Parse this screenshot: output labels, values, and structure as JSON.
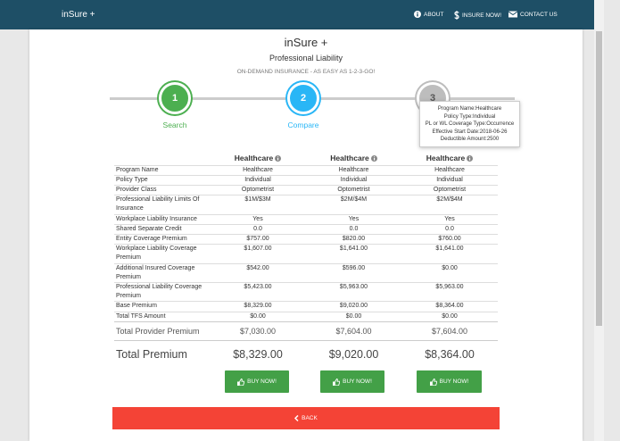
{
  "navbar": {
    "brand": "inSure +",
    "links": [
      "ABOUT",
      "INSURE NOW!",
      "CONTACT US"
    ]
  },
  "header": {
    "title": "inSure +",
    "subtitle": "Professional Liability",
    "tagline": "ON-DEMAND INSURANCE - AS EASY AS 1-2-3-GO!"
  },
  "steps": [
    {
      "number": "1",
      "label": "Search"
    },
    {
      "number": "2",
      "label": "Compare"
    },
    {
      "number": "3"
    }
  ],
  "tooltip": [
    "Program Name:Healthcare",
    "Policy Type:Individual",
    "PL or WL Coverage Type:Occurrence",
    "Effective Start Date:2018-06-26",
    "Deductible Amount:2500"
  ],
  "table": {
    "columns": [
      "Healthcare",
      "Healthcare",
      "Healthcare"
    ],
    "rows": [
      [
        "Program Name",
        "Healthcare",
        "Healthcare",
        "Healthcare"
      ],
      [
        "Policy Type",
        "Individual",
        "Individual",
        "Individual"
      ],
      [
        "Provider Class",
        "Optometrist",
        "Optometrist",
        "Optometrist"
      ],
      [
        "Professional Liability Limits Of Insurance",
        "$1M/$3M",
        "$2M/$4M",
        "$2M/$4M"
      ],
      [
        "Workplace Liability Insurance",
        "Yes",
        "Yes",
        "Yes"
      ],
      [
        "Shared Separate Credit",
        "0.0",
        "0.0",
        "0.0"
      ],
      [
        "Entity Coverage Premium",
        "$757.00",
        "$820.00",
        "$760.00"
      ],
      [
        "Workplace Liability Coverage Premium",
        "$1,607.00",
        "$1,641.00",
        "$1,641.00"
      ],
      [
        "Additional Insured Coverage Premium",
        "$542.00",
        "$596.00",
        "$0.00"
      ],
      [
        "Professional Liability Coverage Premium",
        "$5,423.00",
        "$5,963.00",
        "$5,963.00"
      ],
      [
        "Base Premium",
        "$8,329.00",
        "$9,020.00",
        "$8,364.00"
      ],
      [
        "Total TFS Amount",
        "$0.00",
        "$0.00",
        "$0.00"
      ]
    ],
    "totals": [
      [
        "Total Provider Premium",
        "$7,030.00",
        "$7,604.00",
        "$7,604.00"
      ],
      [
        "Total Premium",
        "$8,329.00",
        "$9,020.00",
        "$8,364.00"
      ]
    ]
  },
  "buttons": {
    "buy": [
      "BUY NOW!",
      "BUY NOW!",
      "BUY NOW!"
    ],
    "back": "BACK"
  }
}
